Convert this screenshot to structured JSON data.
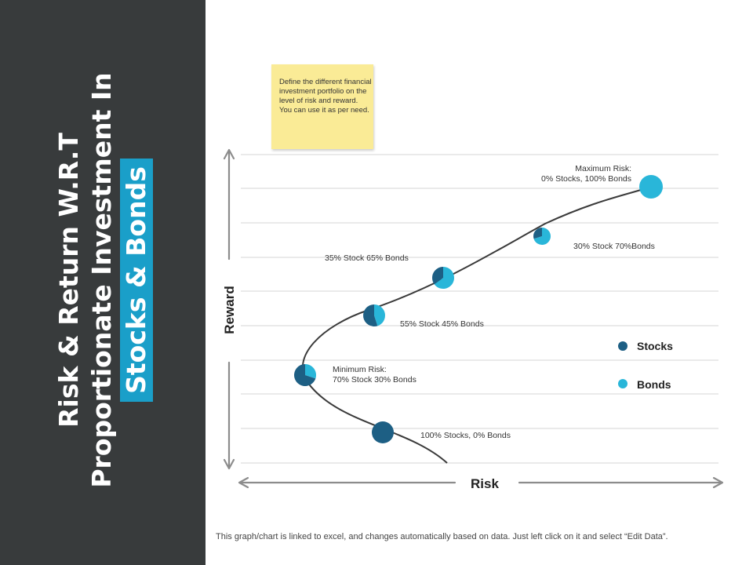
{
  "sidebar": {
    "title_line1": "Risk & Return W.R.T",
    "title_line2": "Proportionate Investment In",
    "title_line3": "Stocks & Bonds"
  },
  "sticky_note": {
    "text": "Define the different financial investment portfolio on the level of risk and reward. You can use it as per need."
  },
  "footer": {
    "text": "This graph/chart is linked to excel, and changes automatically based on data. Just left click on it and select “Edit Data”."
  },
  "colors": {
    "sidebar_bg": "#383b3c",
    "stocks": "#1d5f84",
    "bonds": "#29b6d9",
    "highlight": "#1a9fc9",
    "sticky": "#faeb96"
  },
  "chart_data": {
    "type": "scatter",
    "xlabel": "Risk",
    "ylabel": "Reward",
    "grid": true,
    "legend": {
      "position": "right",
      "entries": [
        "Stocks",
        "Bonds"
      ]
    },
    "points": [
      {
        "id": "p100",
        "label_lines": [
          "100% Stocks, 0% Bonds"
        ],
        "stocks": 100,
        "bonds": 0
      },
      {
        "id": "pmin",
        "label_lines": [
          "Minimum Risk:",
          "70% Stock 30% Bonds"
        ],
        "stocks": 70,
        "bonds": 30
      },
      {
        "id": "p55",
        "label_lines": [
          "55% Stock 45% Bonds"
        ],
        "stocks": 55,
        "bonds": 45
      },
      {
        "id": "p35",
        "label_lines": [
          "35% Stock 65% Bonds"
        ],
        "stocks": 35,
        "bonds": 65
      },
      {
        "id": "p30",
        "label_lines": [
          "30% Stock 70%Bonds"
        ],
        "stocks": 30,
        "bonds": 70
      },
      {
        "id": "pmax",
        "label_lines": [
          "Maximum Risk:",
          "0% Stocks, 100% Bonds"
        ],
        "stocks": 0,
        "bonds": 100
      }
    ]
  }
}
